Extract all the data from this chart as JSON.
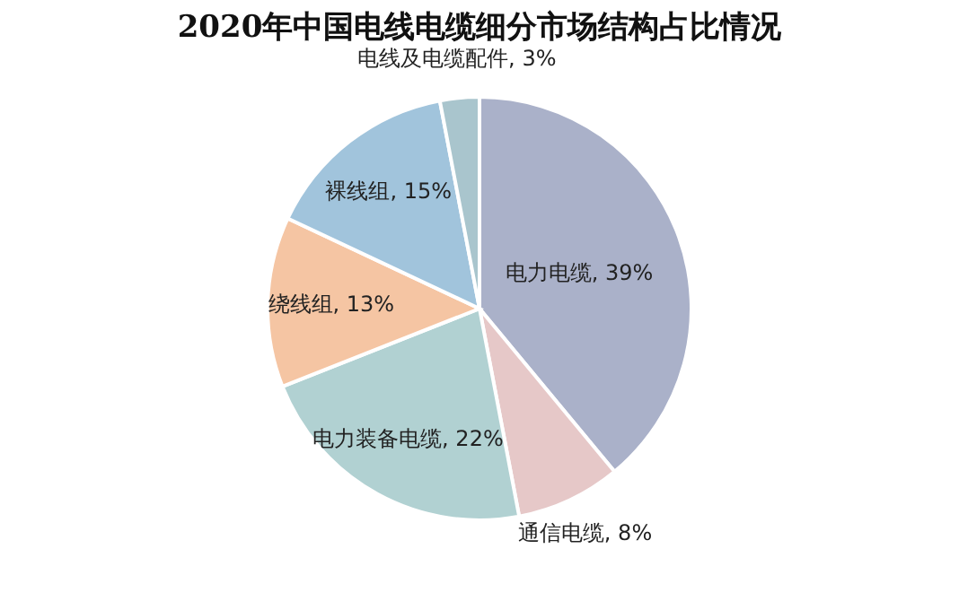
{
  "chart_data": {
    "type": "pie",
    "title": "2020年中国电线电缆细分市场结构占比情况",
    "categories": [
      "电力电缆",
      "通信电缆",
      "电力装备电缆",
      "绕线组",
      "裸线组",
      "电线及电缆配件"
    ],
    "values": [
      39,
      8,
      22,
      13,
      15,
      3
    ],
    "value_labels": [
      "39%",
      "8%",
      "22%",
      "13%",
      "15%",
      "3%"
    ],
    "colors": [
      "#aab1c9",
      "#e6c8c8",
      "#b1d1d2",
      "#f5c5a3",
      "#a1c4dc",
      "#a9c5cd"
    ],
    "legend": false
  }
}
